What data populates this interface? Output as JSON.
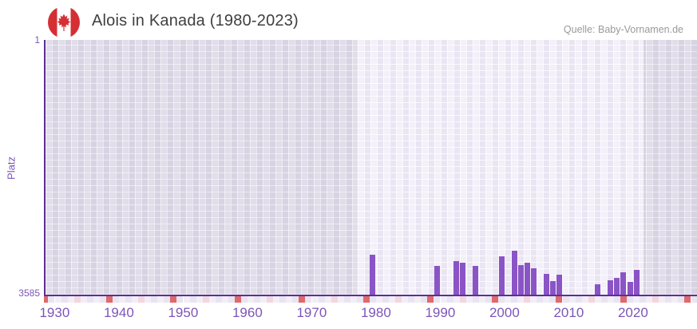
{
  "header": {
    "title": "Alois in Kanada (1980-2023)",
    "source": "Quelle: Baby-Vornamen.de",
    "flag_icon": "canada-flag-round"
  },
  "chart_data": {
    "type": "bar",
    "title": "Alois in Kanada (1980-2023)",
    "ylabel": "Platz",
    "xlabel": "",
    "grid": true,
    "legend": false,
    "y_axis": {
      "top_label": "1",
      "bottom_label": "3585",
      "min": 1,
      "max": 3585,
      "inverted": true
    },
    "x_axis": {
      "visible_range": [
        1928,
        2032
      ],
      "tick_labels": [
        "1930",
        "1940",
        "1950",
        "1960",
        "1970",
        "1980",
        "1990",
        "2000",
        "2010",
        "2020"
      ],
      "tick_years": [
        1930,
        1940,
        1950,
        1960,
        1970,
        1980,
        1990,
        2000,
        2010,
        2020
      ]
    },
    "highlight_range": {
      "from": 1980,
      "to": 2023
    },
    "series": [
      {
        "year": 1981,
        "rank": 3027
      },
      {
        "year": 1991,
        "rank": 3175
      },
      {
        "year": 1994,
        "rank": 3108
      },
      {
        "year": 1995,
        "rank": 3135
      },
      {
        "year": 1997,
        "rank": 3175
      },
      {
        "year": 2001,
        "rank": 3046
      },
      {
        "year": 2003,
        "rank": 2971
      },
      {
        "year": 2004,
        "rank": 3164
      },
      {
        "year": 2005,
        "rank": 3138
      },
      {
        "year": 2006,
        "rank": 3213
      },
      {
        "year": 2008,
        "rank": 3295
      },
      {
        "year": 2009,
        "rank": 3389
      },
      {
        "year": 2010,
        "rank": 3306
      },
      {
        "year": 2016,
        "rank": 3443
      },
      {
        "year": 2018,
        "rank": 3380
      },
      {
        "year": 2019,
        "rank": 3343
      },
      {
        "year": 2020,
        "rank": 3269
      },
      {
        "year": 2021,
        "rank": 3406
      },
      {
        "year": 2022,
        "rank": 3231
      }
    ],
    "colors": {
      "bar": "#8a54c6",
      "axis": "#5b2f94",
      "axis_label": "#7d55b8",
      "decade_tick": "#df696c",
      "half_decade_tick": "#f3d7de",
      "plain_tick_even": "#f2eef8",
      "plain_tick_odd": "#e9e4f1",
      "band_background": "#efebf7",
      "outside_background": "#dcd7e6",
      "title_text": "#3f3f3f",
      "source_text": "#9a9a9a",
      "flag_red": "#d52f34"
    }
  }
}
